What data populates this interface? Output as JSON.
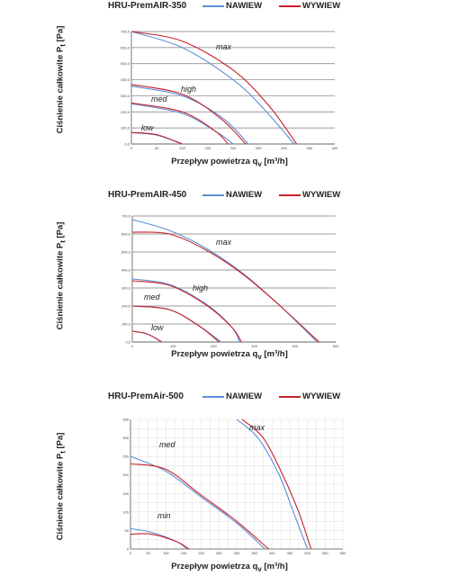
{
  "legend": {
    "nawiew": "NAWIEW",
    "wywiew": "WYWIEW"
  },
  "colors": {
    "nawiew": "#5b8fd6",
    "wywiew": "#c8202a",
    "grid_major": "#7a7a7a",
    "grid_minor": "#e2e2e2"
  },
  "ylabel": {
    "prefix": "Ciśnienie całkowite P",
    "sub": "t",
    "suffix": " [Pa]"
  },
  "xlabel": {
    "prefix": "Przepływ powietrza q",
    "sub": "v",
    "suffix": " [m³/h]"
  },
  "chart_data": [
    {
      "type": "line",
      "title": "HRU-PremAIR-350",
      "xlim": [
        0,
        400
      ],
      "ylim": [
        0,
        700
      ],
      "xticks": [
        "0",
        "50",
        "100",
        "150",
        "200",
        "250",
        "300",
        "350",
        "400"
      ],
      "yticks": [
        "0,0",
        "100,0",
        "200,0",
        "300,0",
        "400,0",
        "500,0",
        "600,0",
        "700,0"
      ],
      "grid": "major",
      "series": [
        {
          "name": "NAWIEW",
          "label": "max",
          "points": [
            [
              0,
              700
            ],
            [
              100,
              600
            ],
            [
              200,
              400
            ],
            [
              260,
              220
            ],
            [
              320,
              0
            ]
          ]
        },
        {
          "name": "WYWIEW",
          "label": "max",
          "points": [
            [
              0,
              700
            ],
            [
              100,
              640
            ],
            [
              200,
              460
            ],
            [
              270,
              240
            ],
            [
              325,
              0
            ]
          ]
        },
        {
          "name": "NAWIEW",
          "label": "high",
          "points": [
            [
              0,
              360
            ],
            [
              100,
              300
            ],
            [
              180,
              160
            ],
            [
              230,
              0
            ]
          ]
        },
        {
          "name": "WYWIEW",
          "label": "high",
          "points": [
            [
              0,
              370
            ],
            [
              100,
              310
            ],
            [
              175,
              160
            ],
            [
              225,
              0
            ]
          ]
        },
        {
          "name": "NAWIEW",
          "label": "med",
          "points": [
            [
              0,
              250
            ],
            [
              100,
              190
            ],
            [
              170,
              70
            ],
            [
              200,
              0
            ]
          ]
        },
        {
          "name": "WYWIEW",
          "label": "med",
          "points": [
            [
              0,
              255
            ],
            [
              100,
              200
            ],
            [
              165,
              80
            ],
            [
              190,
              0
            ]
          ]
        },
        {
          "name": "NAWIEW",
          "label": "low",
          "points": [
            [
              0,
              70
            ],
            [
              50,
              55
            ],
            [
              100,
              0
            ]
          ]
        },
        {
          "name": "WYWIEW",
          "label": "low",
          "points": [
            [
              0,
              72
            ],
            [
              50,
              58
            ],
            [
              100,
              0
            ]
          ]
        }
      ],
      "annotations": [
        "max",
        "high",
        "med",
        "low"
      ]
    },
    {
      "type": "line",
      "title": "HRU-PremAIR-450",
      "xlim": [
        0,
        550
      ],
      "ylim": [
        0,
        700
      ],
      "xticks": [
        "0",
        "100",
        "200",
        "300",
        "400",
        "500"
      ],
      "yticks": [
        "0,0",
        "100,0",
        "200,0",
        "300,0",
        "400,0",
        "500,0",
        "600,0",
        "700,0"
      ],
      "grid": "major",
      "series": [
        {
          "name": "NAWIEW",
          "label": "max",
          "points": [
            [
              0,
              680
            ],
            [
              100,
              620
            ],
            [
              200,
              520
            ],
            [
              300,
              380
            ],
            [
              400,
              200
            ],
            [
              500,
              0
            ]
          ]
        },
        {
          "name": "WYWIEW",
          "label": "max",
          "points": [
            [
              0,
              610
            ],
            [
              100,
              600
            ],
            [
              200,
              510
            ],
            [
              300,
              375
            ],
            [
              400,
              200
            ],
            [
              505,
              0
            ]
          ]
        },
        {
          "name": "NAWIEW",
          "label": "high",
          "points": [
            [
              0,
              350
            ],
            [
              100,
              320
            ],
            [
              200,
              210
            ],
            [
              270,
              80
            ],
            [
              290,
              0
            ]
          ]
        },
        {
          "name": "WYWIEW",
          "label": "high",
          "points": [
            [
              0,
              340
            ],
            [
              100,
              315
            ],
            [
              200,
              205
            ],
            [
              270,
              80
            ],
            [
              295,
              0
            ]
          ]
        },
        {
          "name": "NAWIEW",
          "label": "med",
          "points": [
            [
              0,
              200
            ],
            [
              100,
              180
            ],
            [
              180,
              90
            ],
            [
              240,
              0
            ]
          ]
        },
        {
          "name": "WYWIEW",
          "label": "med",
          "points": [
            [
              0,
              200
            ],
            [
              100,
              180
            ],
            [
              180,
              90
            ],
            [
              235,
              0
            ]
          ]
        },
        {
          "name": "NAWIEW",
          "label": "low",
          "points": [
            [
              0,
              60
            ],
            [
              40,
              45
            ],
            [
              80,
              0
            ]
          ]
        },
        {
          "name": "WYWIEW",
          "label": "low",
          "points": [
            [
              0,
              60
            ],
            [
              40,
              45
            ],
            [
              80,
              0
            ]
          ]
        }
      ],
      "annotations": [
        "max",
        "high",
        "med",
        "low"
      ]
    },
    {
      "type": "line",
      "title": "HRU-PremAir-500",
      "xlim": [
        0,
        600
      ],
      "ylim": [
        0,
        350
      ],
      "xticks": [
        "0",
        "50",
        "100",
        "150",
        "200",
        "250",
        "300",
        "350",
        "400",
        "450",
        "500",
        "550",
        "600"
      ],
      "yticks": [
        "0",
        "50",
        "100",
        "150",
        "200",
        "250",
        "300",
        "350"
      ],
      "grid": "minor",
      "series": [
        {
          "name": "NAWIEW",
          "label": "max",
          "points": [
            [
              300,
              350
            ],
            [
              360,
              300
            ],
            [
              420,
              200
            ],
            [
              460,
              100
            ],
            [
              500,
              0
            ]
          ]
        },
        {
          "name": "WYWIEW",
          "label": "max",
          "points": [
            [
              315,
              350
            ],
            [
              375,
              300
            ],
            [
              430,
              200
            ],
            [
              475,
              100
            ],
            [
              510,
              0
            ]
          ]
        },
        {
          "name": "NAWIEW",
          "label": "med",
          "points": [
            [
              0,
              250
            ],
            [
              100,
              210
            ],
            [
              200,
              140
            ],
            [
              300,
              70
            ],
            [
              380,
              0
            ]
          ]
        },
        {
          "name": "WYWIEW",
          "label": "med",
          "points": [
            [
              0,
              230
            ],
            [
              100,
              215
            ],
            [
              200,
              145
            ],
            [
              300,
              75
            ],
            [
              390,
              0
            ]
          ]
        },
        {
          "name": "NAWIEW",
          "label": "min",
          "points": [
            [
              0,
              55
            ],
            [
              60,
              45
            ],
            [
              130,
              20
            ],
            [
              160,
              0
            ]
          ]
        },
        {
          "name": "WYWIEW",
          "label": "min",
          "points": [
            [
              0,
              40
            ],
            [
              60,
              40
            ],
            [
              130,
              20
            ],
            [
              165,
              0
            ]
          ]
        }
      ],
      "annotations": [
        "max",
        "med",
        "min"
      ]
    }
  ]
}
